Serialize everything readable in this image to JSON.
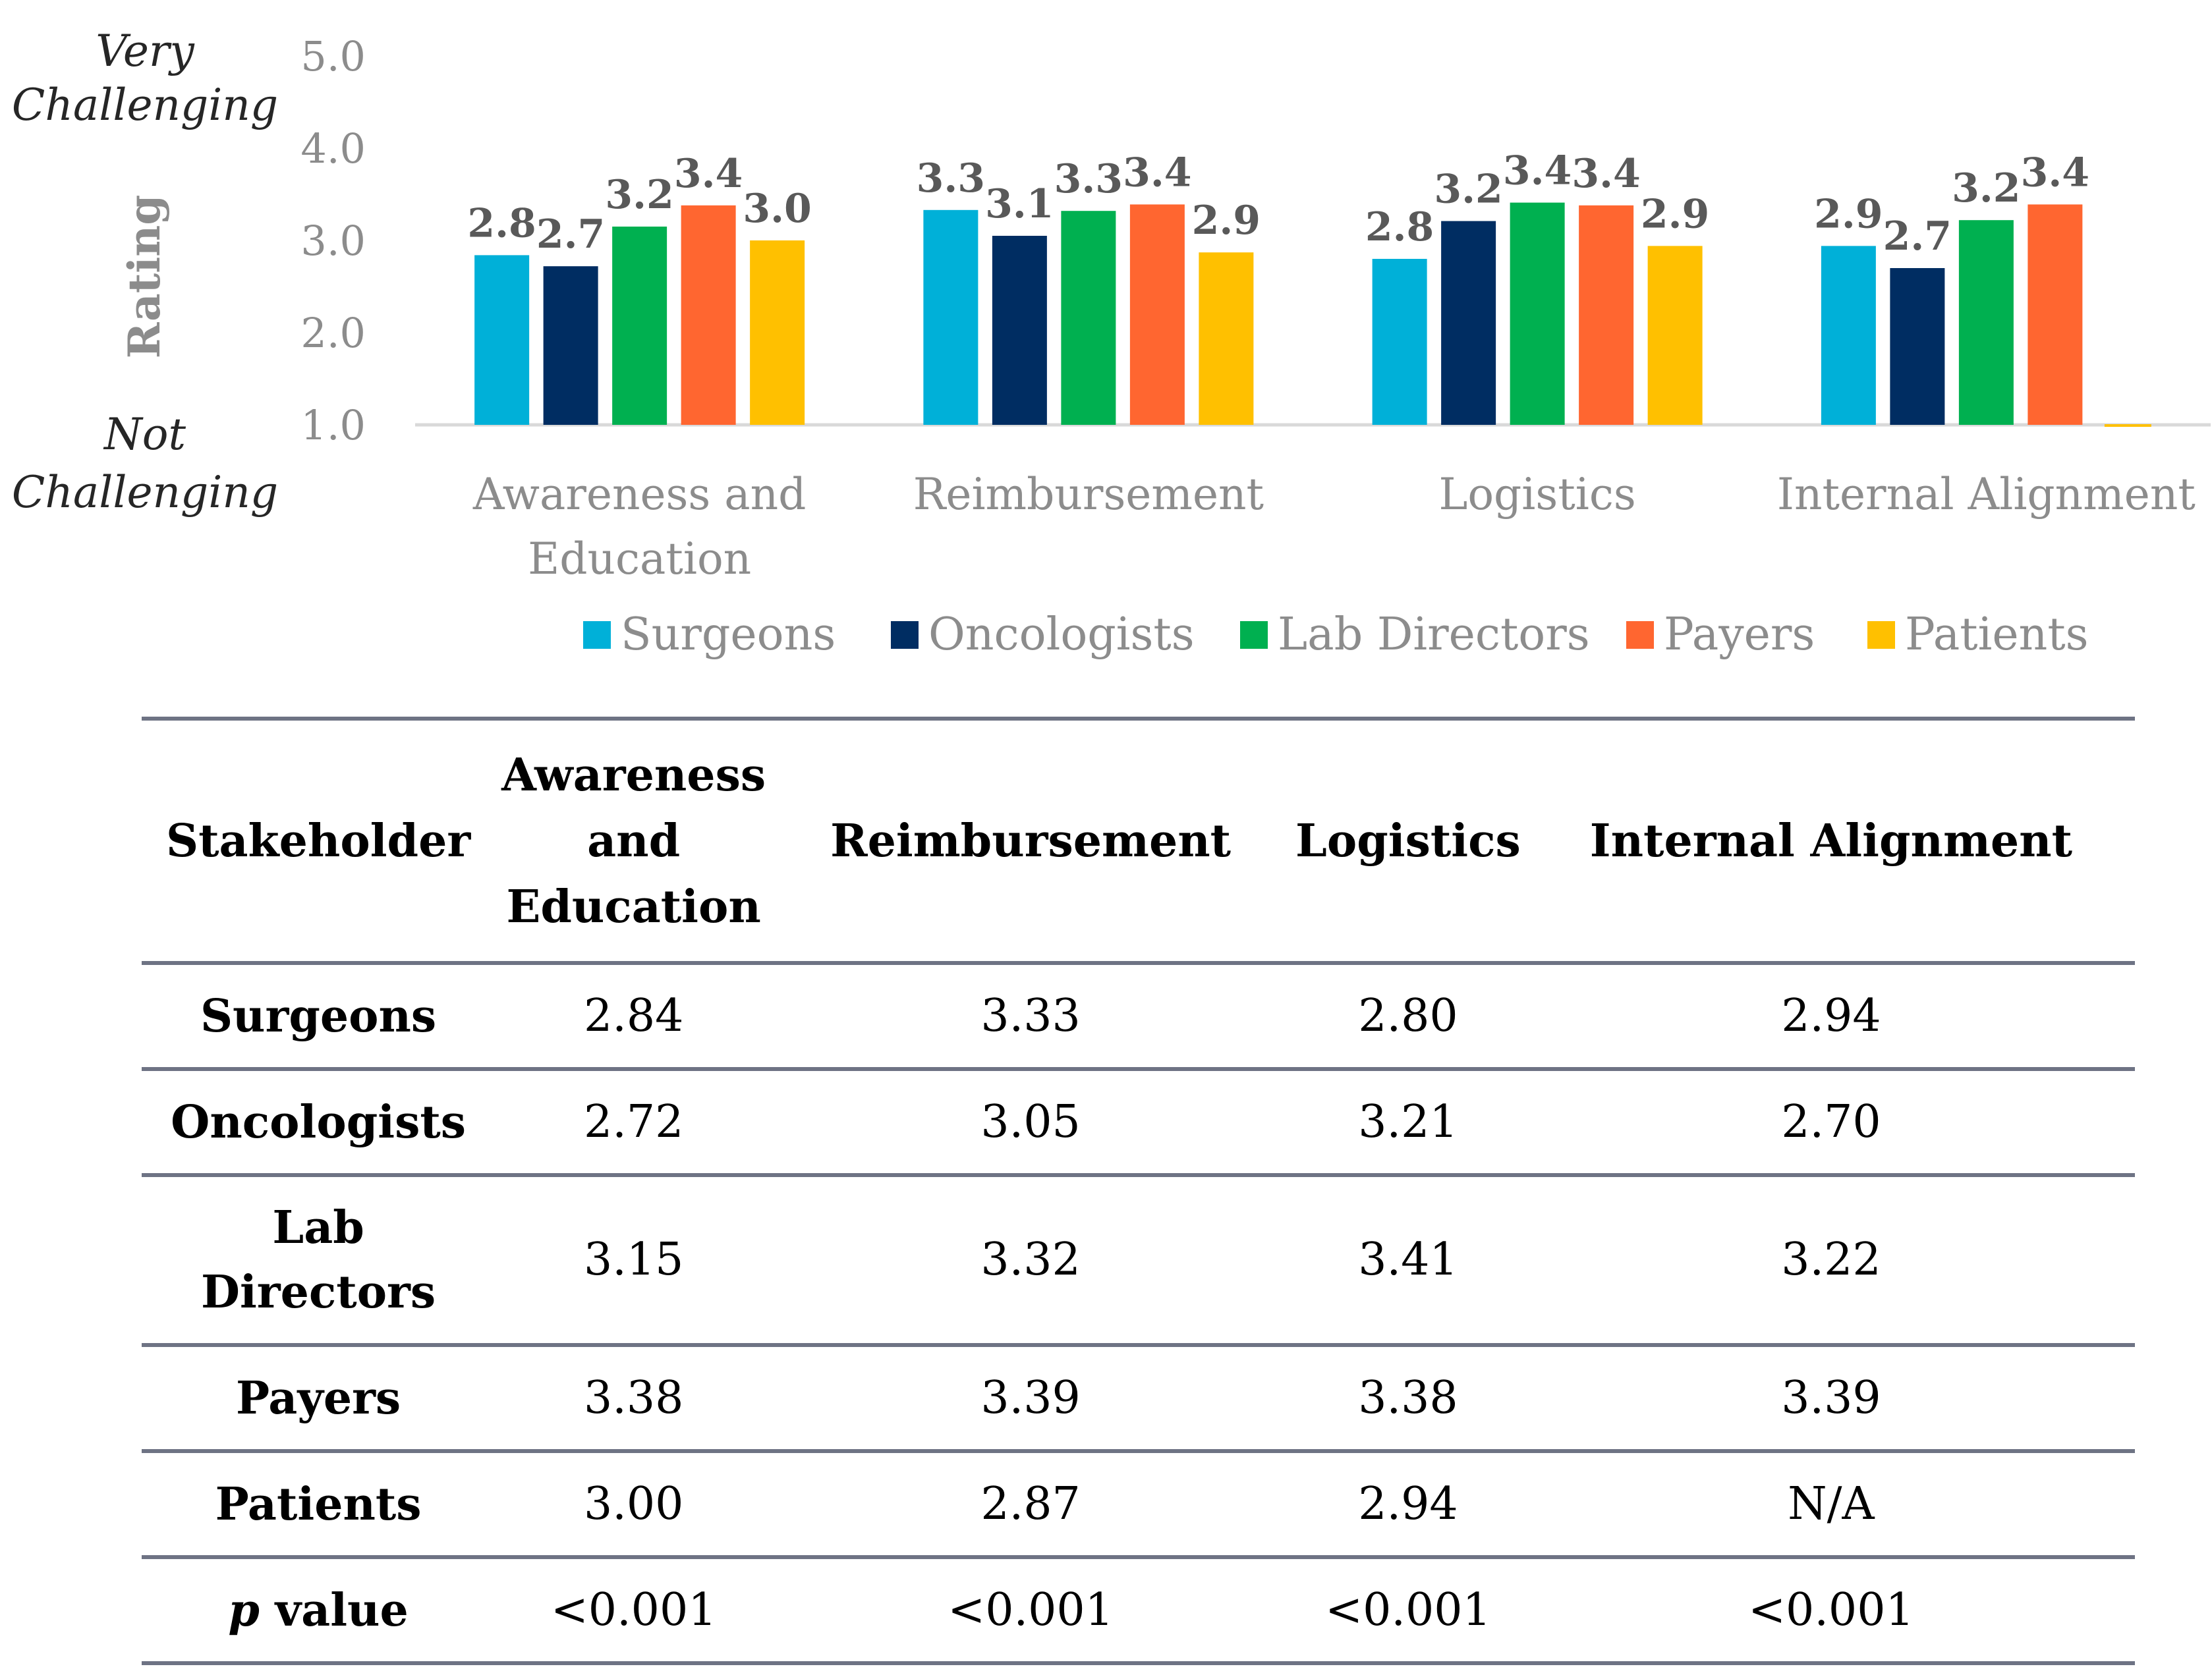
{
  "chart_data": {
    "type": "bar",
    "title": "",
    "ylabel": "Rating",
    "ylabel_top": [
      "Very",
      "Challenging"
    ],
    "ylabel_bottom": [
      "Not",
      "Challenging"
    ],
    "ylim": [
      1.0,
      5.0
    ],
    "yticks": [
      "5.0",
      "4.0",
      "3.0",
      "2.0",
      "1.0"
    ],
    "categories": [
      [
        "Awareness and",
        "Education"
      ],
      [
        "Reimbursement"
      ],
      [
        "Logistics"
      ],
      [
        "Internal Alignment"
      ]
    ],
    "series": [
      {
        "name": "Surgeons",
        "color": "#00b0d8",
        "values": [
          2.84,
          3.33,
          2.8,
          2.94
        ],
        "labels": [
          "2.8",
          "3.3",
          "2.8",
          "2.9"
        ]
      },
      {
        "name": "Oncologists",
        "color": "#002d62",
        "values": [
          2.72,
          3.05,
          3.21,
          2.7
        ],
        "labels": [
          "2.7",
          "3.1",
          "3.2",
          "2.7"
        ]
      },
      {
        "name": "Lab Directors",
        "color": "#00b050",
        "values": [
          3.15,
          3.32,
          3.41,
          3.22
        ],
        "labels": [
          "3.2",
          "3.3",
          "3.4",
          "3.2"
        ]
      },
      {
        "name": "Payers",
        "color": "#ff6630",
        "values": [
          3.38,
          3.39,
          3.38,
          3.39
        ],
        "labels": [
          "3.4",
          "3.4",
          "3.4",
          "3.4"
        ]
      },
      {
        "name": "Patients",
        "color": "#ffc000",
        "values": [
          3.0,
          2.87,
          2.94,
          null
        ],
        "labels": [
          "3.0",
          "2.9",
          "2.9",
          ""
        ]
      }
    ],
    "legend_position": "bottom",
    "grid": false
  },
  "table": {
    "headers": [
      "Stakeholder",
      "Awareness and Education",
      "Reimbursement",
      "Logistics",
      "Internal Alignment"
    ],
    "rows": [
      {
        "name": "Surgeons",
        "values": [
          "2.84",
          "3.33",
          "2.80",
          "2.94"
        ]
      },
      {
        "name": "Oncologists",
        "values": [
          "2.72",
          "3.05",
          "3.21",
          "2.70"
        ]
      },
      {
        "name": "Lab Directors",
        "values": [
          "3.15",
          "3.32",
          "3.41",
          "3.22"
        ]
      },
      {
        "name": "Payers",
        "values": [
          "3.38",
          "3.39",
          "3.38",
          "3.39"
        ]
      },
      {
        "name": "Patients",
        "values": [
          "3.00",
          "2.87",
          "2.94",
          "N/A"
        ]
      }
    ],
    "pvalue": {
      "italic": "p",
      "rest": " value",
      "values": [
        "<0.001",
        "<0.001",
        "<0.001",
        "<0.001"
      ]
    }
  }
}
